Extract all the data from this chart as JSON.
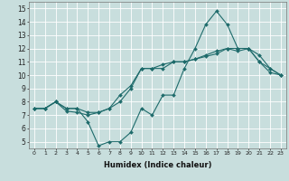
{
  "xlabel": "Humidex (Indice chaleur)",
  "background_color": "#c8dedd",
  "line_color": "#1e6b6b",
  "xlim": [
    -0.5,
    23.5
  ],
  "ylim": [
    4.5,
    15.5
  ],
  "xticks": [
    0,
    1,
    2,
    3,
    4,
    5,
    6,
    7,
    8,
    9,
    10,
    11,
    12,
    13,
    14,
    15,
    16,
    17,
    18,
    19,
    20,
    21,
    22,
    23
  ],
  "yticks": [
    5,
    6,
    7,
    8,
    9,
    10,
    11,
    12,
    13,
    14,
    15
  ],
  "line1_x": [
    0,
    1,
    2,
    3,
    4,
    5,
    6,
    7,
    8,
    9,
    10,
    11,
    12,
    13,
    14,
    15,
    16,
    17,
    18,
    19,
    20,
    21,
    22,
    23
  ],
  "line1_y": [
    7.5,
    7.5,
    8.0,
    7.5,
    7.5,
    6.5,
    4.7,
    5.0,
    5.0,
    5.7,
    7.5,
    7.0,
    8.5,
    8.5,
    10.5,
    12.0,
    13.8,
    14.8,
    13.8,
    12.0,
    12.0,
    11.0,
    10.5,
    10.0
  ],
  "line2_x": [
    0,
    1,
    2,
    3,
    4,
    5,
    6,
    7,
    8,
    9,
    10,
    11,
    12,
    13,
    14,
    15,
    16,
    17,
    18,
    19,
    20,
    21,
    22,
    23
  ],
  "line2_y": [
    7.5,
    7.5,
    8.0,
    7.5,
    7.5,
    7.2,
    7.2,
    7.5,
    8.5,
    9.2,
    10.5,
    10.5,
    10.8,
    11.0,
    11.0,
    11.2,
    11.5,
    11.8,
    12.0,
    12.0,
    12.0,
    11.5,
    10.5,
    10.0
  ],
  "line3_x": [
    0,
    1,
    2,
    3,
    4,
    5,
    6,
    7,
    8,
    9,
    10,
    11,
    12,
    13,
    14,
    15,
    16,
    17,
    18,
    19,
    20,
    21,
    22,
    23
  ],
  "line3_y": [
    7.5,
    7.5,
    8.0,
    7.3,
    7.2,
    7.0,
    7.2,
    7.5,
    8.0,
    9.0,
    10.5,
    10.5,
    10.5,
    11.0,
    11.0,
    11.2,
    11.4,
    11.6,
    12.0,
    11.8,
    12.0,
    11.0,
    10.2,
    10.0
  ],
  "xtick_fontsize": 4.5,
  "ytick_fontsize": 5.5,
  "xlabel_fontsize": 6.0
}
